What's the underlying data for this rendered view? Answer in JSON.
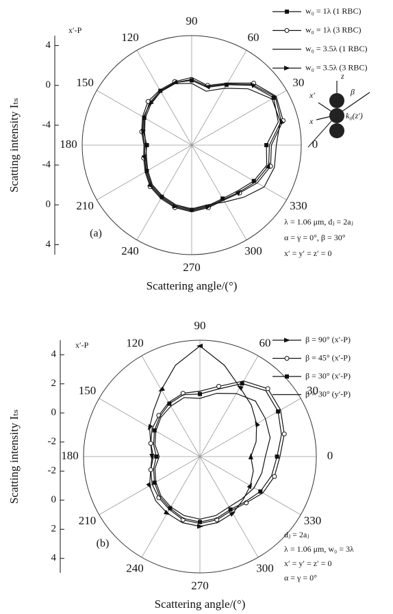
{
  "chart_data": [
    {
      "type": "polar",
      "panel_label": "(a)",
      "y_label": "Scatting intensity Iₜₛ",
      "x_label": "Scattering angle/(°)",
      "corner_label": "x′-P",
      "thetaticks": [
        0,
        30,
        60,
        90,
        120,
        150,
        180,
        210,
        240,
        270,
        300,
        330
      ],
      "rlim": [
        -6,
        5
      ],
      "rticks": [
        4,
        0,
        -4
      ],
      "theta": [
        0,
        15,
        30,
        45,
        60,
        75,
        90,
        105,
        120,
        135,
        150,
        165,
        180,
        195,
        210,
        225,
        240,
        255,
        270,
        285,
        300,
        315,
        330,
        345
      ],
      "series": [
        {
          "name": "w₀ = 1λ (1 RBC)",
          "color": "#111",
          "marker": "square",
          "values": [
            1.5,
            3,
            3.5,
            2.5,
            1,
            0,
            0.5,
            0.5,
            0.3,
            0,
            -0.5,
            -1,
            -1.5,
            -1.2,
            -0.8,
            -0.3,
            0,
            0.3,
            0.5,
            0.3,
            0.2,
            0.5,
            1.2,
            1.8
          ]
        },
        {
          "name": "w₀ = 1λ (3 RBC)",
          "color": "#111",
          "marker": "circle",
          "values": [
            2,
            3.5,
            3.8,
            2.8,
            1.2,
            0.2,
            0.8,
            0.6,
            0.4,
            0.2,
            -0.3,
            -0.8,
            -1.2,
            -1,
            -0.6,
            -0.1,
            0.2,
            0.5,
            0.7,
            0.5,
            0.4,
            0.8,
            1.6,
            2.2
          ]
        },
        {
          "name": "w₀ = 3.5λ (1 RBC)",
          "color": "#111",
          "marker": "none",
          "values": [
            2.5,
            3.2,
            3.3,
            2,
            0.6,
            -0.4,
            0.2,
            0.4,
            0.2,
            -0.2,
            -0.6,
            -1.1,
            -1.4,
            -1.3,
            -0.9,
            -0.4,
            -0.1,
            0.2,
            0.4,
            0.2,
            0.6,
            1.4,
            2.4,
            2.6
          ]
        },
        {
          "name": "w₀ = 3.5λ (3 RBC)",
          "color": "#111",
          "marker": "arrow",
          "values": [
            1.8,
            3.3,
            3.7,
            2.6,
            1.1,
            0.1,
            0.6,
            0.5,
            0.2,
            -0.1,
            -0.4,
            -0.9,
            -1.3,
            -1.1,
            -0.7,
            -0.2,
            0.1,
            0.4,
            0.6,
            0.4,
            0.3,
            0.7,
            1.4,
            2
          ]
        }
      ],
      "annotations": [
        "λ = 1.06 μm, dⱼ = 2aⱼ",
        "α = γ = 0°, β = 30°",
        "x′ = y′ = z′ = 0"
      ],
      "inset_labels": [
        "z",
        "x′",
        "β",
        "x",
        "k₀(z′)"
      ]
    },
    {
      "type": "polar",
      "panel_label": "(b)",
      "y_label": "Scatting intensity Iₜₛ",
      "x_label": "Scattering angle/(°)",
      "corner_label": "x′-P",
      "thetaticks": [
        0,
        30,
        60,
        90,
        120,
        150,
        180,
        210,
        240,
        270,
        300,
        330
      ],
      "rlim": [
        -3,
        5
      ],
      "rticks": [
        4,
        2,
        0,
        -2
      ],
      "theta": [
        0,
        15,
        30,
        45,
        60,
        75,
        90,
        105,
        120,
        135,
        150,
        165,
        180,
        195,
        210,
        225,
        240,
        255,
        270,
        285,
        300,
        315,
        330,
        345
      ],
      "series": [
        {
          "name": "β = 90° (x′-P)",
          "color": "#111",
          "marker": "arrow",
          "values": [
            0.5,
            1,
            1.5,
            2,
            2.5,
            3.5,
            4.6,
            3.5,
            2.3,
            1.5,
            1,
            0.5,
            0.3,
            0.5,
            1,
            1.3,
            1.5,
            1.7,
            1.8,
            1.7,
            1.5,
            1.2,
            1,
            0.8
          ]
        },
        {
          "name": "β = 45° (x′-P)",
          "color": "#111",
          "marker": "circle",
          "values": [
            2.5,
            3,
            3.4,
            3.6,
            3,
            2,
            1.5,
            1.5,
            1.3,
            1,
            0.8,
            0.5,
            0.2,
            0.5,
            0.8,
            1,
            1.2,
            1.5,
            1.6,
            1.5,
            1.3,
            1.5,
            2,
            2.3
          ]
        },
        {
          "name": "β = 30° (x′-P)",
          "color": "#111",
          "marker": "square",
          "values": [
            2.3,
            2.8,
            3.2,
            3.4,
            2.8,
            1.8,
            1.3,
            1.4,
            1.2,
            0.9,
            0.6,
            0.3,
            0,
            0.3,
            0.6,
            0.9,
            1.1,
            1.4,
            1.5,
            1.4,
            1.2,
            1.4,
            1.8,
            2.1
          ]
        },
        {
          "name": "β = 30° (y′-P)",
          "color": "#111",
          "marker": "none",
          "values": [
            1.5,
            2,
            2.2,
            2.4,
            2,
            1.5,
            1,
            1.2,
            1,
            0.8,
            0.5,
            0.2,
            -0.2,
            0.2,
            0.5,
            0.8,
            1,
            1.2,
            1.3,
            1.2,
            1,
            1.1,
            1.3,
            1.4
          ]
        }
      ],
      "annotations": [
        "dⱼ = 2aⱼ",
        "λ = 1.06 μm, w₀ = 3λ",
        "x′ = y′ = z′ = 0",
        "α = γ = 0°"
      ]
    }
  ]
}
